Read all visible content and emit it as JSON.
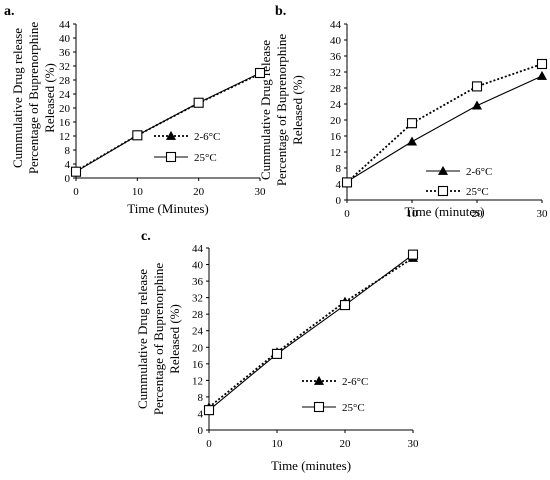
{
  "chart_data": [
    {
      "panel_label": "a.",
      "type": "line",
      "xlabel": "Time (Minutes)",
      "ylabel": [
        "Cummulative Drug release",
        "Percentage of Buprenorphine",
        "Released (%)"
      ],
      "xticks": [
        0,
        10,
        20,
        30
      ],
      "yticks": [
        0,
        4,
        8,
        12,
        16,
        20,
        24,
        28,
        32,
        36,
        40,
        44
      ],
      "xlim": [
        0,
        30
      ],
      "ylim": [
        0,
        44
      ],
      "legend_position": "right-center",
      "series": [
        {
          "name": "2-6°C",
          "line": "dotted",
          "marker": "filled-triangle",
          "x": [
            0,
            10,
            20,
            30
          ],
          "y": [
            2,
            12.2,
            21.4,
            29.8
          ]
        },
        {
          "name": "25°C",
          "line": "solid",
          "marker": "open-square",
          "x": [
            0,
            10,
            20,
            30
          ],
          "y": [
            1.8,
            12.2,
            21.5,
            30
          ]
        }
      ]
    },
    {
      "panel_label": "b.",
      "type": "line",
      "xlabel": "Time (minutes)",
      "ylabel": [
        "Cummulative Drug release",
        "Percentage of Buprenorphine",
        "Released (%)"
      ],
      "xticks": [
        0,
        10,
        20,
        30
      ],
      "yticks": [
        0,
        4,
        8,
        12,
        16,
        20,
        24,
        28,
        32,
        36,
        40,
        44
      ],
      "xlim": [
        0,
        30
      ],
      "ylim": [
        0,
        44
      ],
      "legend_position": "bottom-right",
      "series": [
        {
          "name": "2-6°C",
          "line": "solid",
          "marker": "filled-triangle",
          "x": [
            0,
            10,
            20,
            30
          ],
          "y": [
            4.6,
            14.6,
            23.6,
            31
          ]
        },
        {
          "name": "25°C",
          "line": "dotted",
          "marker": "open-square",
          "x": [
            0,
            10,
            20,
            30
          ],
          "y": [
            4.4,
            19.2,
            28.4,
            34
          ]
        }
      ]
    },
    {
      "panel_label": "c.",
      "type": "line",
      "xlabel": "Time (minutes)",
      "ylabel": [
        "Cummulative Drug release",
        "Percentage of Buprenorphine",
        "Released (%)"
      ],
      "xticks": [
        0,
        10,
        20,
        30
      ],
      "yticks": [
        0,
        4,
        8,
        12,
        16,
        20,
        24,
        28,
        32,
        36,
        40,
        44
      ],
      "xlim": [
        0,
        30
      ],
      "ylim": [
        0,
        44
      ],
      "legend_position": "bottom-right",
      "series": [
        {
          "name": "2-6°C",
          "line": "dotted",
          "marker": "filled-triangle",
          "x": [
            0,
            10,
            20,
            30
          ],
          "y": [
            5.5,
            18.8,
            31,
            41.6
          ]
        },
        {
          "name": "25°C",
          "line": "solid",
          "marker": "open-square",
          "x": [
            0,
            10,
            20,
            30
          ],
          "y": [
            4.8,
            18.4,
            30.2,
            42.4
          ]
        }
      ]
    }
  ]
}
